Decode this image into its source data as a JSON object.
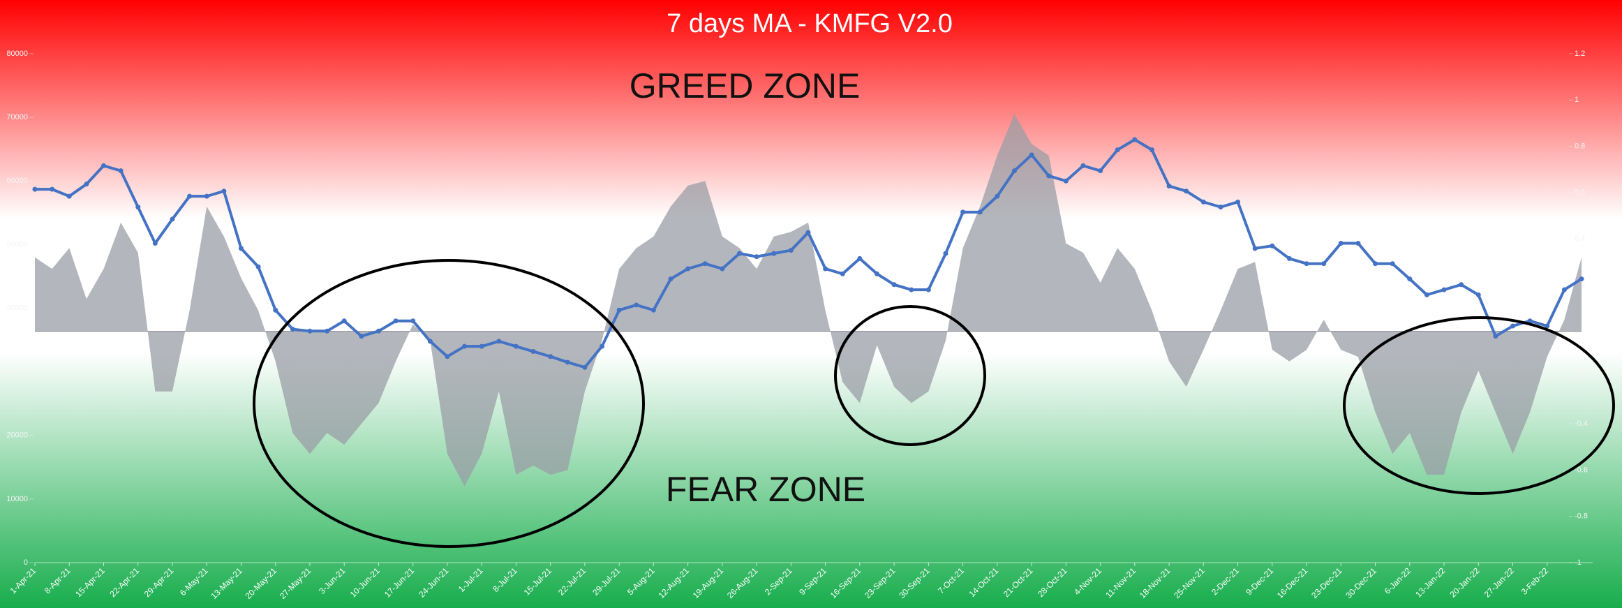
{
  "chart_data": {
    "type": "line",
    "title": "7 days MA - KMFG V2.0",
    "annotations": [
      "GREED ZONE",
      "FEAR ZONE"
    ],
    "categories": [
      "1-Apr-21",
      null,
      "8-Apr-21",
      null,
      "15-Apr-21",
      null,
      "22-Apr-21",
      null,
      "29-Apr-21",
      null,
      "6-May-21",
      null,
      "13-May-21",
      null,
      "20-May-21",
      null,
      "27-May-21",
      null,
      "3-Jun-21",
      null,
      "10-Jun-21",
      null,
      "17-Jun-21",
      null,
      "24-Jun-21",
      null,
      "1-Jul-21",
      null,
      "8-Jul-21",
      null,
      "15-Jul-21",
      null,
      "22-Jul-21",
      null,
      "29-Jul-21",
      null,
      "5-Aug-21",
      null,
      "12-Aug-21",
      null,
      "19-Aug-21",
      null,
      "26-Aug-21",
      null,
      "2-Sep-21",
      null,
      "9-Sep-21",
      null,
      "16-Sep-21",
      null,
      "23-Sep-21",
      null,
      "30-Sep-21",
      null,
      "7-Oct-21",
      null,
      "14-Oct-21",
      null,
      "21-Oct-21",
      null,
      "28-Oct-21",
      null,
      "4-Nov-21",
      null,
      "11-Nov-21",
      null,
      "18-Nov-21",
      null,
      "25-Nov-21",
      null,
      "2-Dec-21",
      null,
      "9-Dec-21",
      null,
      "16-Dec-21",
      null,
      "23-Dec-21",
      null,
      "30-Dec-21",
      null,
      "6-Jan-22",
      null,
      "13-Jan-22",
      null,
      "20-Jan-22",
      null,
      "27-Jan-22",
      null,
      "3-Feb-22",
      null,
      null
    ],
    "series": [
      {
        "type": "area",
        "axis": "y2",
        "color": "#9a9ea6",
        "values": [
          0.32,
          0.27,
          0.36,
          0.14,
          0.27,
          0.47,
          0.34,
          -0.26,
          -0.26,
          0.09,
          0.54,
          0.41,
          0.23,
          0.09,
          -0.13,
          -0.44,
          -0.53,
          -0.44,
          -0.49,
          -0.4,
          -0.31,
          -0.13,
          0.03,
          -0.04,
          -0.53,
          -0.67,
          -0.53,
          -0.26,
          -0.62,
          -0.58,
          -0.62,
          -0.6,
          -0.26,
          -0.04,
          0.27,
          0.36,
          0.41,
          0.54,
          0.63,
          0.65,
          0.41,
          0.36,
          0.27,
          0.41,
          0.43,
          0.47,
          0.09,
          -0.22,
          -0.31,
          -0.06,
          -0.24,
          -0.31,
          -0.26,
          -0.04,
          0.36,
          0.54,
          0.76,
          0.94,
          0.81,
          0.76,
          0.38,
          0.34,
          0.21,
          0.36,
          0.27,
          0.09,
          -0.13,
          -0.24,
          -0.08,
          0.09,
          0.27,
          0.3,
          -0.08,
          -0.13,
          -0.08,
          0.05,
          -0.08,
          -0.11,
          -0.35,
          -0.53,
          -0.44,
          -0.62,
          -0.62,
          -0.35,
          -0.17,
          -0.35,
          -0.53,
          -0.35,
          -0.11,
          0.05,
          0.32
        ]
      },
      {
        "type": "line",
        "color": "#4472c4",
        "values": [
          58700,
          58700,
          57600,
          59500,
          62400,
          61600,
          55900,
          50200,
          54000,
          57600,
          57600,
          58400,
          49400,
          46500,
          39700,
          36700,
          36400,
          36400,
          38000,
          35600,
          36400,
          38000,
          38000,
          34800,
          32400,
          34000,
          34000,
          34800,
          34000,
          33200,
          32400,
          31500,
          30700,
          34000,
          39700,
          40500,
          39700,
          44600,
          46200,
          47000,
          46200,
          48600,
          48100,
          48600,
          49100,
          51900,
          46200,
          45400,
          47800,
          45400,
          43700,
          42900,
          42900,
          48600,
          55100,
          55100,
          57600,
          61600,
          64100,
          60800,
          60000,
          62400,
          61600,
          64900,
          66500,
          64900,
          59200,
          58400,
          56700,
          55900,
          56700,
          49400,
          49800,
          47800,
          47000,
          47000,
          50200,
          50200,
          47000,
          47000,
          44600,
          42100,
          42900,
          43700,
          42100,
          35600,
          37200,
          38000,
          37200,
          42900,
          44600
        ]
      }
    ],
    "ylim": [
      0,
      80000
    ],
    "yticks": [
      0,
      10000,
      20000,
      30000,
      40000,
      50000,
      60000,
      70000,
      80000
    ],
    "y2lim": [
      -1,
      1.2
    ],
    "y2ticks": [
      -1,
      -0.8,
      -0.6,
      -0.4,
      -0.2,
      0,
      0.2,
      0.4,
      0.6,
      0.8,
      1,
      1.2
    ]
  }
}
